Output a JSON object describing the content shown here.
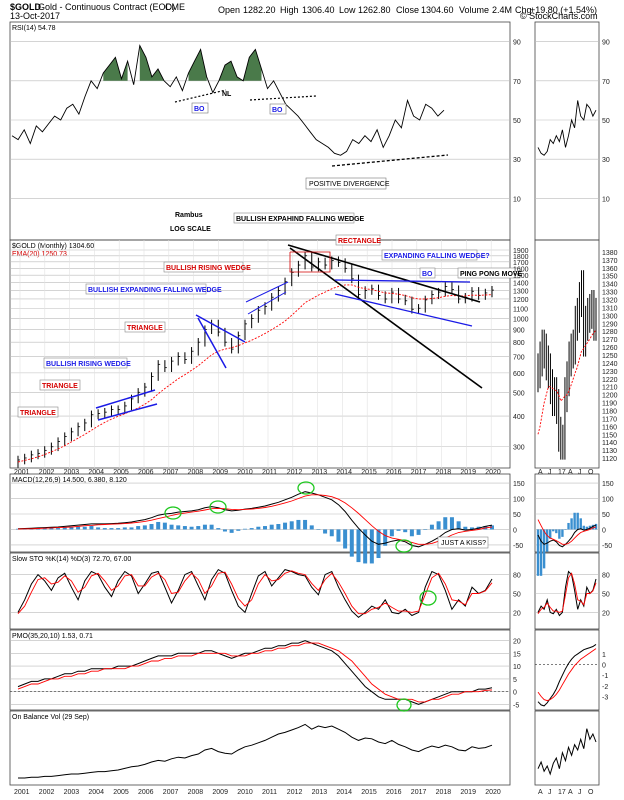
{
  "chart_data": {
    "type": "line",
    "header": {
      "symbol": "$GOLD",
      "description": "Gold - Continuous Contract (EOD)",
      "exchange": "CME",
      "date": "13-Oct-2017",
      "open_label": "Open",
      "open": "1282.20",
      "high_label": "High",
      "high": "1306.40",
      "low_label": "Low",
      "low": "1262.80",
      "close_label": "Close",
      "close": "1304.60",
      "volume_label": "Volume",
      "volume": "2.4M",
      "chg_label": "Chg",
      "chg": "+19.80 (+1.54%)",
      "watermark": "© StockCharts.com"
    },
    "center_labels": [
      "Rambus",
      "LOG SCALE"
    ],
    "x_labels_main": [
      "2001",
      "2002",
      "2003",
      "2004",
      "2005",
      "2006",
      "2007",
      "2008",
      "2009",
      "2010",
      "2011",
      "2012",
      "2013",
      "2014",
      "2015",
      "2016",
      "2017",
      "2018",
      "2019",
      "2020"
    ],
    "x_labels_right": [
      "A",
      "J",
      "17",
      "A",
      "J",
      "O"
    ],
    "rsi": {
      "legend": "RSI(14) 54.78",
      "y_ticks": [
        90,
        70,
        50,
        30,
        10
      ],
      "overbought": 70,
      "oversold": 30,
      "mid": 50,
      "values": [
        42,
        40,
        45,
        38,
        47,
        44,
        48,
        52,
        50,
        56,
        58,
        53,
        62,
        70,
        66,
        74,
        78,
        82,
        71,
        80,
        68,
        88,
        82,
        72,
        76,
        70,
        67,
        72,
        65,
        74,
        80,
        86,
        72,
        64,
        70,
        78,
        80,
        72,
        70,
        82,
        86,
        76,
        66,
        70,
        64,
        58,
        55,
        52,
        48,
        44,
        40,
        38,
        36,
        33,
        32,
        34,
        40,
        38,
        42,
        39,
        45,
        36,
        42,
        50,
        46,
        60,
        52,
        50,
        58,
        56,
        52,
        55
      ]
    },
    "price": {
      "legend": "$GOLD (Monthly) 1304.60",
      "ema_legend": "EMA(20) 1250.73",
      "log_scale": true,
      "y_ticks": [
        1900,
        1800,
        1700,
        1600,
        1500,
        1400,
        1300,
        1200,
        1100,
        1000,
        900,
        800,
        700,
        600,
        500,
        400,
        300
      ],
      "right_y_ticks": [
        1380,
        1370,
        1360,
        1350,
        1340,
        1330,
        1320,
        1310,
        1300,
        1290,
        1280,
        1270,
        1260,
        1250,
        1240,
        1230,
        1220,
        1210,
        1200,
        1190,
        1180,
        1170,
        1160,
        1150,
        1140,
        1130,
        1120
      ],
      "close": [
        265,
        270,
        278,
        282,
        290,
        300,
        315,
        330,
        345,
        362,
        375,
        405,
        410,
        415,
        425,
        425,
        440,
        470,
        500,
        525,
        580,
        650,
        630,
        670,
        700,
        680,
        735,
        800,
        900,
        950,
        880,
        800,
        750,
        850,
        950,
        1000,
        1080,
        1120,
        1220,
        1300,
        1410,
        1540,
        1650,
        1800,
        1620,
        1700,
        1650,
        1720,
        1690,
        1600,
        1450,
        1250,
        1300,
        1320,
        1240,
        1200,
        1280,
        1200,
        1180,
        1090,
        1100,
        1190,
        1250,
        1280,
        1350,
        1310,
        1200,
        1220,
        1290,
        1240,
        1270,
        1304
      ],
      "ema": [
        260,
        264,
        268,
        273,
        279,
        286,
        294,
        303,
        314,
        325,
        337,
        350,
        364,
        377,
        389,
        399,
        409,
        420,
        432,
        447,
        466,
        493,
        518,
        542,
        568,
        590,
        615,
        642,
        675,
        710,
        735,
        750,
        760,
        775,
        795,
        815,
        840,
        868,
        900,
        935,
        975,
        1030,
        1090,
        1160,
        1200,
        1245,
        1280,
        1320,
        1350,
        1370,
        1370,
        1340,
        1320,
        1310,
        1290,
        1270,
        1265,
        1255,
        1240,
        1215,
        1200,
        1200,
        1205,
        1215,
        1230,
        1240,
        1235,
        1235,
        1245,
        1242,
        1246,
        1250
      ],
      "right_close": [
        1230,
        1245,
        1260,
        1255,
        1240,
        1230,
        1210,
        1195,
        1200,
        1185,
        1150,
        1130,
        1140,
        1200,
        1220,
        1245,
        1255,
        1260,
        1290,
        1300,
        1320,
        1335,
        1270,
        1290,
        1300,
        1305,
        1310,
        1290,
        1300
      ],
      "right_ema": [
        1150,
        1160,
        1175,
        1190,
        1200,
        1210,
        1210,
        1208,
        1206,
        1205,
        1200,
        1192,
        1195,
        1198,
        1200,
        1205,
        1212,
        1220,
        1228,
        1235,
        1245,
        1255,
        1258,
        1262,
        1266,
        1270,
        1275,
        1278,
        1282
      ]
    },
    "macd": {
      "legend": "MACD(12,26,9) 14.500, 6.380, 8.120",
      "y_ticks": [
        150,
        100,
        50,
        0,
        -50
      ],
      "macd": [
        2,
        3,
        4,
        5,
        6,
        7,
        8,
        10,
        12,
        14,
        16,
        18,
        18,
        18,
        19,
        20,
        22,
        24,
        28,
        32,
        38,
        46,
        50,
        52,
        56,
        58,
        60,
        64,
        70,
        74,
        70,
        64,
        60,
        62,
        66,
        68,
        72,
        76,
        82,
        88,
        96,
        104,
        114,
        122,
        118,
        112,
        104,
        96,
        80,
        58,
        30,
        4,
        -18,
        -38,
        -48,
        -44,
        -38,
        -34,
        -40,
        -52,
        -56,
        -48,
        -38,
        -26,
        -10,
        0,
        2,
        -2,
        0,
        4,
        10,
        14
      ],
      "signal": [
        1,
        2,
        2,
        3,
        4,
        5,
        6,
        7,
        8,
        10,
        12,
        13,
        15,
        16,
        17,
        18,
        19,
        21,
        23,
        26,
        30,
        35,
        40,
        45,
        50,
        53,
        56,
        59,
        63,
        67,
        68,
        67,
        65,
        64,
        65,
        66,
        68,
        71,
        75,
        80,
        86,
        92,
        100,
        108,
        112,
        112,
        110,
        106,
        98,
        86,
        70,
        52,
        32,
        12,
        -6,
        -20,
        -28,
        -32,
        -36,
        -42,
        -48,
        -48,
        -45,
        -38,
        -28,
        -18,
        -10,
        -6,
        -3,
        0,
        5,
        8
      ]
    },
    "sto": {
      "legend": "Slow STO %K(14) %D(3) 72.70, 67.00",
      "y_ticks": [
        80,
        50,
        20
      ],
      "k": [
        20,
        40,
        65,
        80,
        70,
        55,
        75,
        82,
        60,
        40,
        70,
        85,
        80,
        60,
        45,
        70,
        85,
        78,
        50,
        65,
        82,
        85,
        60,
        35,
        55,
        80,
        85,
        62,
        40,
        72,
        88,
        82,
        55,
        30,
        20,
        50,
        78,
        85,
        62,
        75,
        88,
        85,
        80,
        78,
        60,
        48,
        80,
        85,
        60,
        40,
        22,
        12,
        20,
        30,
        25,
        40,
        20,
        18,
        25,
        15,
        20,
        60,
        85,
        80,
        55,
        25,
        40,
        30,
        60,
        50,
        55,
        73
      ],
      "d": [
        18,
        30,
        52,
        72,
        75,
        65,
        68,
        78,
        70,
        52,
        60,
        78,
        82,
        70,
        55,
        62,
        78,
        80,
        62,
        62,
        76,
        82,
        72,
        50,
        52,
        70,
        82,
        72,
        50,
        62,
        82,
        84,
        65,
        42,
        30,
        40,
        65,
        80,
        70,
        72,
        82,
        86,
        82,
        80,
        66,
        55,
        72,
        82,
        68,
        50,
        30,
        18,
        18,
        25,
        28,
        35,
        28,
        22,
        22,
        20,
        22,
        48,
        75,
        82,
        65,
        40,
        38,
        32,
        50,
        50,
        54,
        67
      ]
    },
    "pmo": {
      "legend": "PMO(35,20,10) 1.53, 0.71",
      "y_ticks": [
        20,
        15,
        10,
        5,
        0,
        -5
      ],
      "pmo": [
        2,
        3,
        4,
        4,
        5,
        5,
        6,
        7,
        7,
        8,
        8,
        9,
        9,
        9,
        9,
        10,
        10,
        10,
        11,
        12,
        13,
        14,
        14,
        14,
        15,
        15,
        15,
        15,
        16,
        16,
        15,
        14,
        13,
        14,
        15,
        15,
        16,
        17,
        17,
        18,
        18,
        19,
        19,
        20,
        19,
        18,
        17,
        16,
        14,
        11,
        8,
        5,
        2,
        0,
        -2,
        -3,
        -3,
        -3,
        -3,
        -4,
        -5,
        -4,
        -3,
        -2,
        -1,
        0,
        0,
        0,
        0,
        1,
        1,
        1.5
      ],
      "signal": [
        1,
        2,
        3,
        3,
        4,
        5,
        5,
        6,
        6,
        7,
        7,
        8,
        8,
        9,
        9,
        9,
        9,
        10,
        10,
        11,
        12,
        12,
        13,
        13,
        14,
        14,
        14,
        15,
        15,
        15,
        15,
        15,
        14,
        14,
        14,
        15,
        15,
        16,
        16,
        17,
        17,
        18,
        18,
        19,
        19,
        19,
        18,
        17,
        16,
        14,
        12,
        9,
        6,
        3,
        1,
        -1,
        -2,
        -3,
        -3,
        -3,
        -4,
        -4,
        -3,
        -3,
        -2,
        -1,
        -1,
        0,
        0,
        0,
        0.5,
        0.7
      ]
    },
    "obv": {
      "legend": "On Balance Vol (29 Sep)",
      "values": [
        5,
        5,
        6,
        6,
        7,
        7,
        8,
        9,
        10,
        10,
        11,
        12,
        13,
        13,
        14,
        15,
        17,
        19,
        20,
        22,
        25,
        27,
        26,
        29,
        31,
        30,
        33,
        35,
        40,
        42,
        38,
        36,
        35,
        40,
        44,
        46,
        49,
        52,
        56,
        60,
        62,
        65,
        68,
        72,
        66,
        70,
        68,
        70,
        66,
        62,
        56,
        52,
        55,
        54,
        50,
        48,
        52,
        47,
        44,
        40,
        38,
        42,
        45,
        43,
        46,
        44,
        40,
        39,
        44,
        42,
        43,
        46
      ]
    },
    "annotations": {
      "triangle": "TRIANGLE",
      "bullish_rising_wedge": "BULLISH RISING WEDGE",
      "bullish_expanding_falling_wedge": "BULLISH EXPANDING FALLING WEDGE",
      "bullish_expanding_falling_wedge_black": "BULLISH EXPAHIND FALLING WEDGE",
      "rectangle": "RECTANGLE",
      "expanding_falling_wedge": "EXPANDING FALLING WEDGE?",
      "bo": "BO",
      "ping_pong": "PING PONG MOVE",
      "nl": "NL",
      "positive_divergence": "POSITIVE DIVERGENCE",
      "just_a_kiss": "JUST A KISS?"
    },
    "colors": {
      "price_bar": "#000000",
      "ema": "#ff0000",
      "blue_annot": "#1a1ae6",
      "red_annot": "#d40000",
      "macd_hist": "#3a8fd0",
      "rsi_fill": "#4a7a4a",
      "green_circle": "#1ec81e"
    }
  }
}
